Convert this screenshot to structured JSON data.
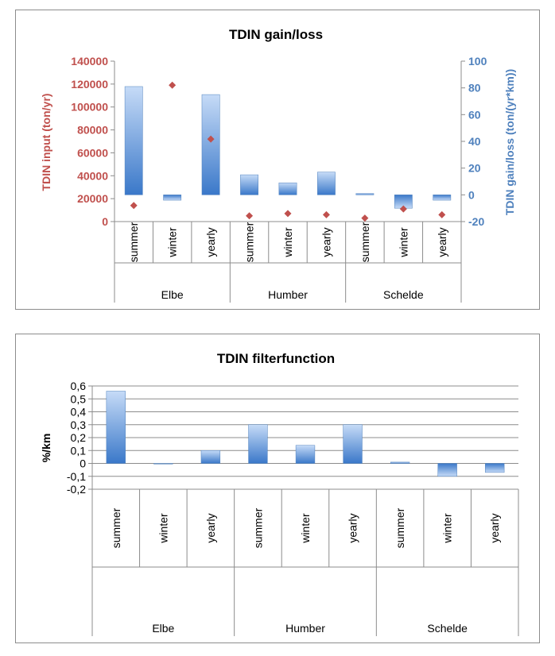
{
  "chart_data": [
    {
      "type": "bar",
      "title": "TDIN gain/loss",
      "ylabel": "TDIN input (ton/yr)",
      "y2label": "TDIN gain/loss (ton/(yr*km))",
      "groups": [
        "Elbe",
        "Humber",
        "Schelde"
      ],
      "categories": [
        "summer",
        "winter",
        "yearly",
        "summer",
        "winter",
        "yearly",
        "summer",
        "winter",
        "yearly"
      ],
      "ylim": [
        0,
        140000
      ],
      "yticks": [
        "0",
        "20000",
        "40000",
        "60000",
        "80000",
        "100000",
        "120000",
        "140000"
      ],
      "y2lim": [
        -20,
        100
      ],
      "y2ticks": [
        "-20",
        "0",
        "20",
        "40",
        "60",
        "80",
        "100"
      ],
      "series": [
        {
          "type": "bar",
          "axis": "right",
          "values": [
            81,
            -4,
            75,
            15,
            9,
            17,
            1,
            -10,
            -4
          ]
        },
        {
          "type": "scatter",
          "axis": "left",
          "marker": "diamond",
          "values": [
            14000,
            119000,
            72000,
            5000,
            7000,
            6000,
            3000,
            11000,
            6000
          ]
        }
      ],
      "colors": {
        "bar": "#4f81bd",
        "marker": "#c0504d",
        "left_axis": "#c0504d",
        "right_axis": "#4f81bd"
      },
      "grid": true
    },
    {
      "type": "bar",
      "title": "TDIN filterfunction",
      "ylabel": "%/km",
      "groups": [
        "Elbe",
        "Humber",
        "Schelde"
      ],
      "categories": [
        "summer",
        "winter",
        "yearly",
        "summer",
        "winter",
        "yearly",
        "summer",
        "winter",
        "yearly"
      ],
      "ylim": [
        -0.2,
        0.6
      ],
      "yticks": [
        "0,6",
        "0,5",
        "0,4",
        "0,3",
        "0,2",
        "0,1",
        "0",
        "-0,1",
        "-0,2"
      ],
      "series": [
        {
          "values": [
            0.56,
            0.0,
            0.1,
            0.3,
            0.14,
            0.3,
            0.01,
            -0.1,
            -0.07
          ]
        }
      ],
      "colors": {
        "bar": "#4f81bd"
      },
      "grid": true
    }
  ]
}
